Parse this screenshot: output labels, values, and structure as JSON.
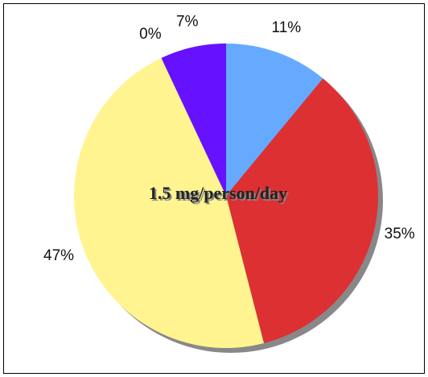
{
  "chart_data": {
    "type": "pie",
    "values": [
      11,
      35,
      47,
      0,
      7
    ],
    "value_labels": [
      "11%",
      "35%",
      "47%",
      "0%",
      "7%"
    ],
    "colors": [
      "#66aaff",
      "#dd3033",
      "#fff48f",
      "#33cc33",
      "#6611ff"
    ],
    "annotation": "1.5 mg/person/day"
  }
}
